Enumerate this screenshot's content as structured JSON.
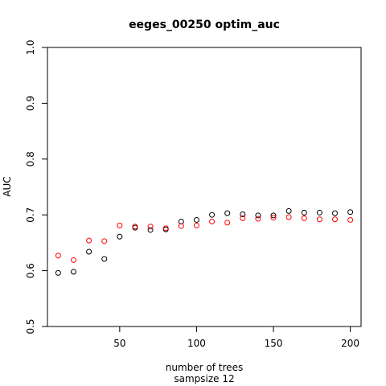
{
  "chart_data": {
    "type": "scatter",
    "title": "eeges_00250 optim_auc",
    "xlabel": "number of trees",
    "xlabel2": "sampsize 12",
    "ylabel": "AUC",
    "xlim": [
      3,
      207
    ],
    "ylim": [
      0.5,
      1.0
    ],
    "xticks": [
      50,
      100,
      150,
      200
    ],
    "yticks": [
      0.5,
      0.6,
      0.7,
      0.8,
      0.9,
      1.0
    ],
    "ytick_labels": [
      "0.5",
      "0.6",
      "0.7",
      "0.8",
      "0.9",
      "1.0"
    ],
    "grid": false,
    "series": [
      {
        "color": "#000000",
        "x": [
          10,
          20,
          30,
          40,
          50,
          60,
          70,
          80,
          90,
          100,
          110,
          120,
          130,
          140,
          150,
          160,
          170,
          180,
          190,
          200
        ],
        "y": [
          0.596,
          0.598,
          0.634,
          0.621,
          0.661,
          0.677,
          0.673,
          0.674,
          0.688,
          0.691,
          0.7,
          0.703,
          0.701,
          0.699,
          0.699,
          0.707,
          0.704,
          0.704,
          0.703,
          0.705
        ]
      },
      {
        "color": "#ff0000",
        "x": [
          10,
          20,
          30,
          40,
          50,
          60,
          70,
          80,
          90,
          100,
          110,
          120,
          130,
          140,
          150,
          160,
          170,
          180,
          190,
          200
        ],
        "y": [
          0.627,
          0.619,
          0.654,
          0.653,
          0.681,
          0.679,
          0.679,
          0.676,
          0.68,
          0.681,
          0.688,
          0.686,
          0.694,
          0.693,
          0.695,
          0.696,
          0.694,
          0.692,
          0.692,
          0.691
        ]
      }
    ]
  }
}
